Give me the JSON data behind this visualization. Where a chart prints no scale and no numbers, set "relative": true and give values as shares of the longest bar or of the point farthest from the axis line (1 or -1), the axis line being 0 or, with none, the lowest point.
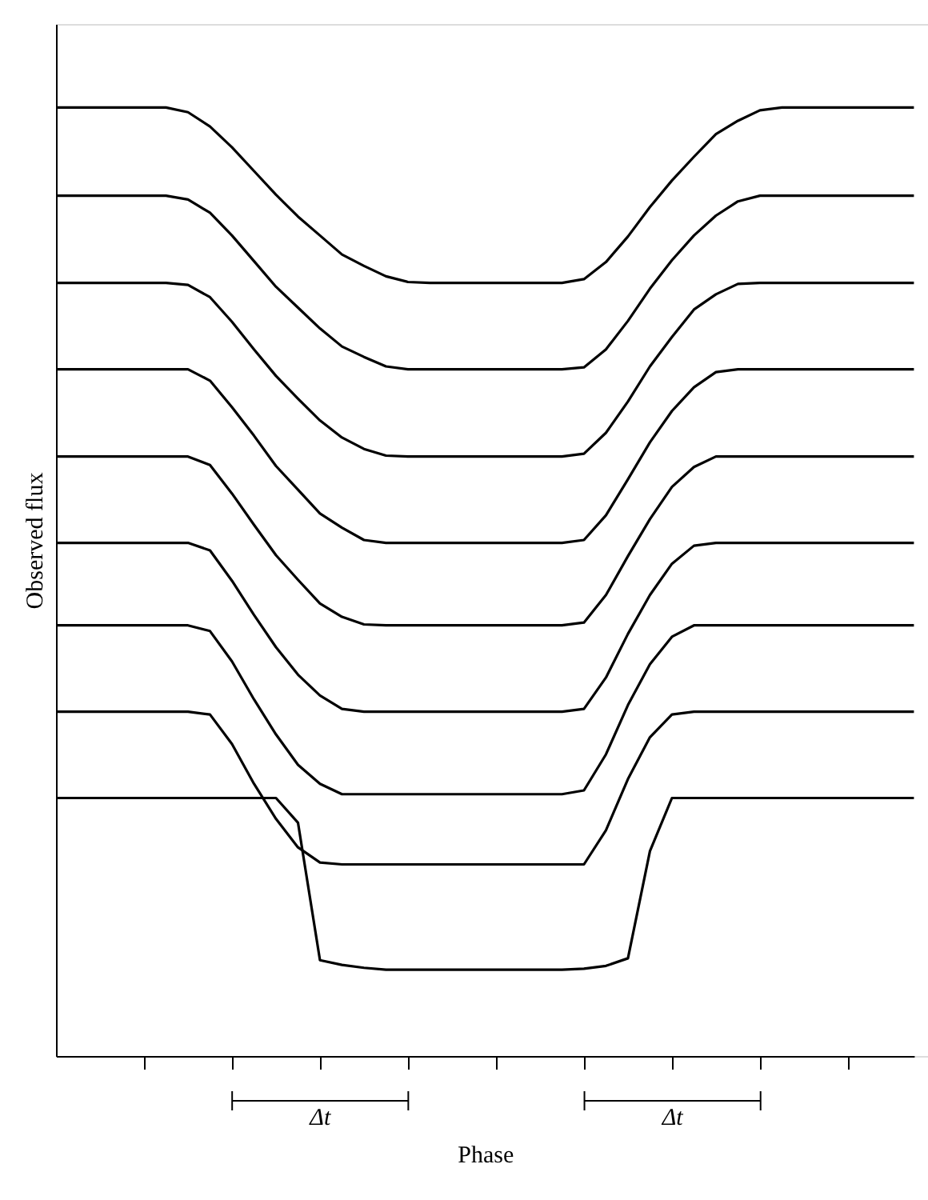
{
  "chart_data": {
    "type": "line",
    "relative": true,
    "xlabel": "Phase",
    "ylabel": "Observed flux",
    "categories": [
      null,
      null,
      null,
      null,
      null,
      null,
      null,
      null,
      null,
      null,
      null,
      null,
      null,
      null,
      null,
      null,
      null,
      null,
      null,
      null,
      null,
      null,
      null,
      null,
      null,
      null,
      null,
      null,
      null,
      null,
      null,
      null,
      null,
      null,
      null,
      null,
      null,
      null,
      null,
      null
    ],
    "grid": false,
    "marker": "none",
    "line_style": "solid",
    "annotations": [
      "Δt",
      "Δt"
    ],
    "series": [
      {
        "color": "#000000",
        "values": [
          1.0,
          1.0,
          1.0,
          1.0,
          1.0,
          1.0,
          0.995,
          0.98,
          0.958,
          0.933,
          0.908,
          0.885,
          0.865,
          0.845,
          0.833,
          0.822,
          0.816,
          0.815,
          0.815,
          0.815,
          0.815,
          0.815,
          0.815,
          0.815,
          0.819,
          0.837,
          0.864,
          0.895,
          0.923,
          0.948,
          0.972,
          0.986,
          0.997,
          1.0,
          1.0,
          1.0,
          1.0,
          1.0,
          1.0,
          1.0
        ]
      },
      {
        "color": "#000000",
        "values": [
          0.907,
          0.907,
          0.907,
          0.907,
          0.907,
          0.907,
          0.903,
          0.889,
          0.865,
          0.838,
          0.811,
          0.789,
          0.767,
          0.748,
          0.737,
          0.727,
          0.724,
          0.724,
          0.724,
          0.724,
          0.724,
          0.724,
          0.724,
          0.724,
          0.726,
          0.745,
          0.775,
          0.809,
          0.839,
          0.865,
          0.886,
          0.901,
          0.907,
          0.907,
          0.907,
          0.907,
          0.907,
          0.907,
          0.907,
          0.907
        ]
      },
      {
        "color": "#000000",
        "values": [
          0.815,
          0.815,
          0.815,
          0.815,
          0.815,
          0.815,
          0.813,
          0.8,
          0.774,
          0.745,
          0.717,
          0.693,
          0.67,
          0.652,
          0.64,
          0.633,
          0.632,
          0.632,
          0.632,
          0.632,
          0.632,
          0.632,
          0.632,
          0.632,
          0.635,
          0.657,
          0.69,
          0.727,
          0.758,
          0.787,
          0.803,
          0.814,
          0.815,
          0.815,
          0.815,
          0.815,
          0.815,
          0.815,
          0.815,
          0.815
        ]
      },
      {
        "color": "#000000",
        "values": [
          0.724,
          0.724,
          0.724,
          0.724,
          0.724,
          0.724,
          0.724,
          0.712,
          0.684,
          0.654,
          0.622,
          0.597,
          0.572,
          0.557,
          0.544,
          0.541,
          0.541,
          0.541,
          0.541,
          0.541,
          0.541,
          0.541,
          0.541,
          0.541,
          0.544,
          0.57,
          0.608,
          0.647,
          0.68,
          0.705,
          0.721,
          0.724,
          0.724,
          0.724,
          0.724,
          0.724,
          0.724,
          0.724,
          0.724,
          0.724
        ]
      },
      {
        "color": "#000000",
        "values": [
          0.632,
          0.632,
          0.632,
          0.632,
          0.632,
          0.632,
          0.632,
          0.623,
          0.593,
          0.56,
          0.528,
          0.502,
          0.477,
          0.463,
          0.455,
          0.454,
          0.454,
          0.454,
          0.454,
          0.454,
          0.454,
          0.454,
          0.454,
          0.454,
          0.457,
          0.486,
          0.527,
          0.566,
          0.6,
          0.621,
          0.632,
          0.632,
          0.632,
          0.632,
          0.632,
          0.632,
          0.632,
          0.632,
          0.632,
          0.632
        ]
      },
      {
        "color": "#000000",
        "values": [
          0.541,
          0.541,
          0.541,
          0.541,
          0.541,
          0.541,
          0.541,
          0.533,
          0.501,
          0.465,
          0.431,
          0.402,
          0.38,
          0.366,
          0.363,
          0.363,
          0.363,
          0.363,
          0.363,
          0.363,
          0.363,
          0.363,
          0.363,
          0.363,
          0.366,
          0.399,
          0.445,
          0.486,
          0.519,
          0.538,
          0.541,
          0.541,
          0.541,
          0.541,
          0.541,
          0.541,
          0.541,
          0.541,
          0.541,
          0.541
        ]
      },
      {
        "color": "#000000",
        "values": [
          0.454,
          0.454,
          0.454,
          0.454,
          0.454,
          0.454,
          0.454,
          0.448,
          0.416,
          0.376,
          0.339,
          0.307,
          0.287,
          0.276,
          0.276,
          0.276,
          0.276,
          0.276,
          0.276,
          0.276,
          0.276,
          0.276,
          0.276,
          0.276,
          0.28,
          0.318,
          0.37,
          0.413,
          0.442,
          0.454,
          0.454,
          0.454,
          0.454,
          0.454,
          0.454,
          0.454,
          0.454,
          0.454,
          0.454,
          0.454
        ]
      },
      {
        "color": "#000000",
        "values": [
          0.363,
          0.363,
          0.363,
          0.363,
          0.363,
          0.363,
          0.363,
          0.36,
          0.329,
          0.287,
          0.25,
          0.22,
          0.204,
          0.202,
          0.202,
          0.202,
          0.202,
          0.202,
          0.202,
          0.202,
          0.202,
          0.202,
          0.202,
          0.202,
          0.202,
          0.238,
          0.292,
          0.336,
          0.36,
          0.363,
          0.363,
          0.363,
          0.363,
          0.363,
          0.363,
          0.363,
          0.363,
          0.363,
          0.363,
          0.363
        ]
      },
      {
        "color": "#000000",
        "values": [
          0.272,
          0.272,
          0.272,
          0.272,
          0.272,
          0.272,
          0.272,
          0.272,
          0.272,
          0.272,
          0.272,
          0.246,
          0.101,
          0.096,
          0.093,
          0.091,
          0.091,
          0.091,
          0.091,
          0.091,
          0.091,
          0.091,
          0.091,
          0.091,
          0.092,
          0.095,
          0.103,
          0.216,
          0.272,
          0.272,
          0.272,
          0.272,
          0.272,
          0.272,
          0.272,
          0.272,
          0.272,
          0.272,
          0.272,
          0.272
        ]
      }
    ]
  }
}
